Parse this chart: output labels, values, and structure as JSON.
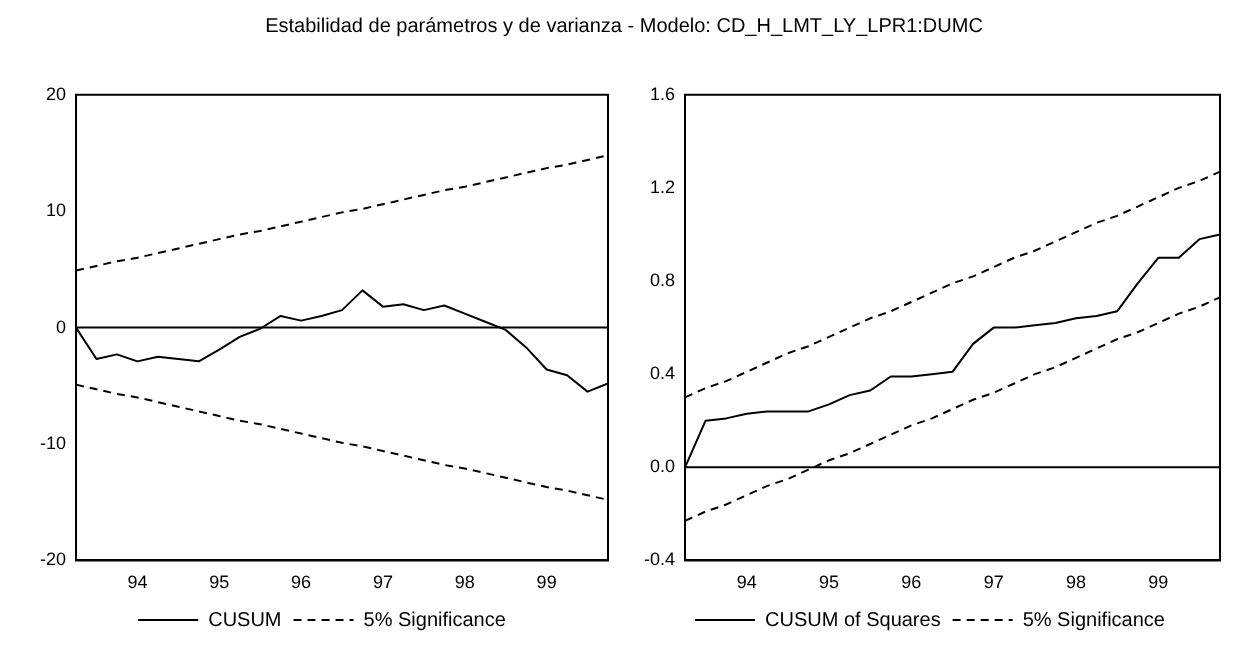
{
  "chart_data": [
    {
      "type": "line",
      "title": "Estabilidad de parámetros y de varianza  - Modelo: CD_H_LMT_LY_LPR1:DUMC",
      "categories": [
        null,
        null,
        null,
        "94",
        null,
        null,
        null,
        "95",
        null,
        null,
        null,
        "96",
        null,
        null,
        null,
        "97",
        null,
        null,
        null,
        "98",
        null,
        null,
        null,
        "99",
        null,
        null,
        null
      ],
      "series": [
        {
          "name": "CUSUM",
          "color": "#000000",
          "line_style": "solid",
          "values": [
            0,
            -2.7,
            -2.3,
            -2.9,
            -2.5,
            -2.7,
            -2.9,
            -1.9,
            -0.8,
            -0.1,
            1.0,
            0.6,
            1.0,
            1.5,
            3.2,
            1.8,
            2.0,
            1.5,
            1.9,
            1.2,
            0.5,
            -0.2,
            -1.7,
            -3.6,
            -4.1,
            -5.5,
            -4.8
          ]
        },
        {
          "name": "5% Significance",
          "color": "#000000",
          "line_style": "dashed",
          "values": [
            4.9,
            5.3,
            5.7,
            6.0,
            6.4,
            6.8,
            7.2,
            7.6,
            8.0,
            8.3,
            8.7,
            9.1,
            9.5,
            9.9,
            10.2,
            10.6,
            11.0,
            11.4,
            11.8,
            12.1,
            12.5,
            12.9,
            13.3,
            13.7,
            14.0,
            14.4,
            14.8
          ]
        },
        {
          "color": "#000000",
          "line_style": "dashed",
          "values": [
            -4.9,
            -5.3,
            -5.7,
            -6.0,
            -6.4,
            -6.8,
            -7.2,
            -7.6,
            -8.0,
            -8.3,
            -8.7,
            -9.1,
            -9.5,
            -9.9,
            -10.2,
            -10.6,
            -11.0,
            -11.4,
            -11.8,
            -12.1,
            -12.5,
            -12.9,
            -13.3,
            -13.7,
            -14.0,
            -14.4,
            -14.8
          ]
        }
      ],
      "ylim": [
        -20,
        20
      ],
      "yticks": [
        -20,
        -10,
        0,
        10,
        20
      ],
      "ref_lines": [
        {
          "axis": "y",
          "value": 0,
          "color": "#000000"
        }
      ],
      "grid": false,
      "legend": "bottom",
      "marker": "none"
    },
    {
      "type": "line",
      "categories": [
        null,
        null,
        null,
        "94",
        null,
        null,
        null,
        "95",
        null,
        null,
        null,
        "96",
        null,
        null,
        null,
        "97",
        null,
        null,
        null,
        "98",
        null,
        null,
        null,
        "99",
        null,
        null,
        null
      ],
      "series": [
        {
          "name": "CUSUM of Squares",
          "color": "#000000",
          "line_style": "solid",
          "values": [
            0.0,
            0.2,
            0.21,
            0.23,
            0.24,
            0.24,
            0.24,
            0.27,
            0.31,
            0.33,
            0.39,
            0.39,
            0.4,
            0.41,
            0.53,
            0.6,
            0.6,
            0.61,
            0.62,
            0.64,
            0.65,
            0.67,
            0.79,
            0.9,
            0.9,
            0.98,
            1.0
          ]
        },
        {
          "name": "5% Significance",
          "color": "#000000",
          "line_style": "dashed",
          "values": [
            0.3,
            0.34,
            0.37,
            0.41,
            0.45,
            0.49,
            0.52,
            0.56,
            0.6,
            0.64,
            0.67,
            0.71,
            0.75,
            0.79,
            0.82,
            0.86,
            0.9,
            0.93,
            0.97,
            1.01,
            1.05,
            1.08,
            1.12,
            1.16,
            1.2,
            1.23,
            1.27
          ]
        },
        {
          "color": "#000000",
          "line_style": "dashed",
          "values": [
            -0.23,
            -0.19,
            -0.16,
            -0.12,
            -0.08,
            -0.05,
            -0.01,
            0.03,
            0.06,
            0.1,
            0.14,
            0.18,
            0.21,
            0.25,
            0.29,
            0.32,
            0.36,
            0.4,
            0.43,
            0.47,
            0.51,
            0.55,
            0.58,
            0.62,
            0.66,
            0.69,
            0.73
          ]
        }
      ],
      "ylim": [
        -0.4,
        1.6
      ],
      "yticks": [
        {
          "value": -0.4,
          "label": "-0.4"
        },
        {
          "value": 0,
          "label": "0.0"
        },
        {
          "value": 0.4,
          "label": "0.4"
        },
        {
          "value": 0.8,
          "label": "0.8"
        },
        {
          "value": 1.2,
          "label": "1.2"
        },
        {
          "value": 1.6,
          "label": "1.6"
        }
      ],
      "ref_lines": [
        {
          "axis": "y",
          "value": 0,
          "color": "#000000"
        }
      ],
      "grid": false,
      "legend": "bottom",
      "marker": "none"
    }
  ]
}
